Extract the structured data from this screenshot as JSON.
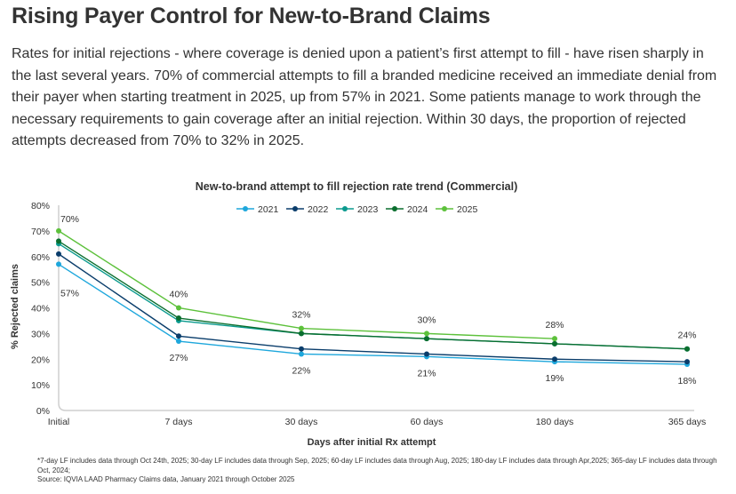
{
  "title": "Rising Payer Control for New-to-Brand Claims",
  "intro": "Rates for initial rejections - where coverage is denied upon a patient’s first attempt to fill - have risen sharply in the last several years. 70% of commercial attempts to fill a branded medicine received an immediate denial from their payer when starting treatment in 2025, up from 57% in 2021. Some patients manage to work through the necessary requirements to gain coverage after an initial rejection. Within 30 days, the proportion of rejected attempts decreased from 70% to 32% in 2025.",
  "colors": {
    "2021": "#1ea7dc",
    "2022": "#0a3d6b",
    "2023": "#0a9a8e",
    "2024": "#0a6e2e",
    "2025": "#5dc13b"
  },
  "chart_data": {
    "type": "line",
    "title": "New-to-brand attempt to fill rejection rate trend (Commercial)",
    "xlabel": "Days after initial Rx attempt",
    "ylabel": "% Rejected claims",
    "categories": [
      "Initial",
      "7 days",
      "30 days",
      "60 days",
      "180 days",
      "365 days"
    ],
    "ylim": [
      0,
      80
    ],
    "yticks": [
      "0%",
      "10%",
      "20%",
      "30%",
      "40%",
      "50%",
      "60%",
      "70%",
      "80%"
    ],
    "legend_position": "top",
    "series": [
      {
        "name": "2021",
        "values": [
          57,
          27,
          22,
          21,
          19,
          18
        ]
      },
      {
        "name": "2022",
        "values": [
          61,
          29,
          24,
          22,
          20,
          19
        ]
      },
      {
        "name": "2023",
        "values": [
          65,
          35,
          30,
          28,
          26,
          24
        ]
      },
      {
        "name": "2024",
        "values": [
          66,
          36,
          30,
          28,
          26,
          24
        ]
      },
      {
        "name": "2025",
        "values": [
          70,
          40,
          32,
          30,
          28,
          null
        ]
      }
    ],
    "annotations": [
      {
        "text": "70%",
        "category": "Initial",
        "value": 70,
        "placement": "above-right"
      },
      {
        "text": "57%",
        "category": "Initial",
        "value": 57,
        "placement": "below-right"
      },
      {
        "text": "40%",
        "category": "7 days",
        "value": 40,
        "placement": "above"
      },
      {
        "text": "27%",
        "category": "7 days",
        "value": 27,
        "placement": "below"
      },
      {
        "text": "32%",
        "category": "30 days",
        "value": 32,
        "placement": "above"
      },
      {
        "text": "22%",
        "category": "30 days",
        "value": 22,
        "placement": "below"
      },
      {
        "text": "30%",
        "category": "60 days",
        "value": 30,
        "placement": "above"
      },
      {
        "text": "21%",
        "category": "60 days",
        "value": 21,
        "placement": "below"
      },
      {
        "text": "28%",
        "category": "180 days",
        "value": 28,
        "placement": "above"
      },
      {
        "text": "19%",
        "category": "180 days",
        "value": 19,
        "placement": "below"
      },
      {
        "text": "24%",
        "category": "365 days",
        "value": 24,
        "placement": "above"
      },
      {
        "text": "18%",
        "category": "365 days",
        "value": 18,
        "placement": "below"
      }
    ]
  },
  "footnotes": [
    "*7-day LF includes data through Oct 24th, 2025; 30-day LF includes data through Sep, 2025; 60-day LF includes data through Aug, 2025; 180-day LF includes data through Apr,2025; 365-day LF includes data through Oct, 2024;",
    "Source: IQVIA LAAD Pharmacy Claims data, January 2021 through October 2025"
  ]
}
